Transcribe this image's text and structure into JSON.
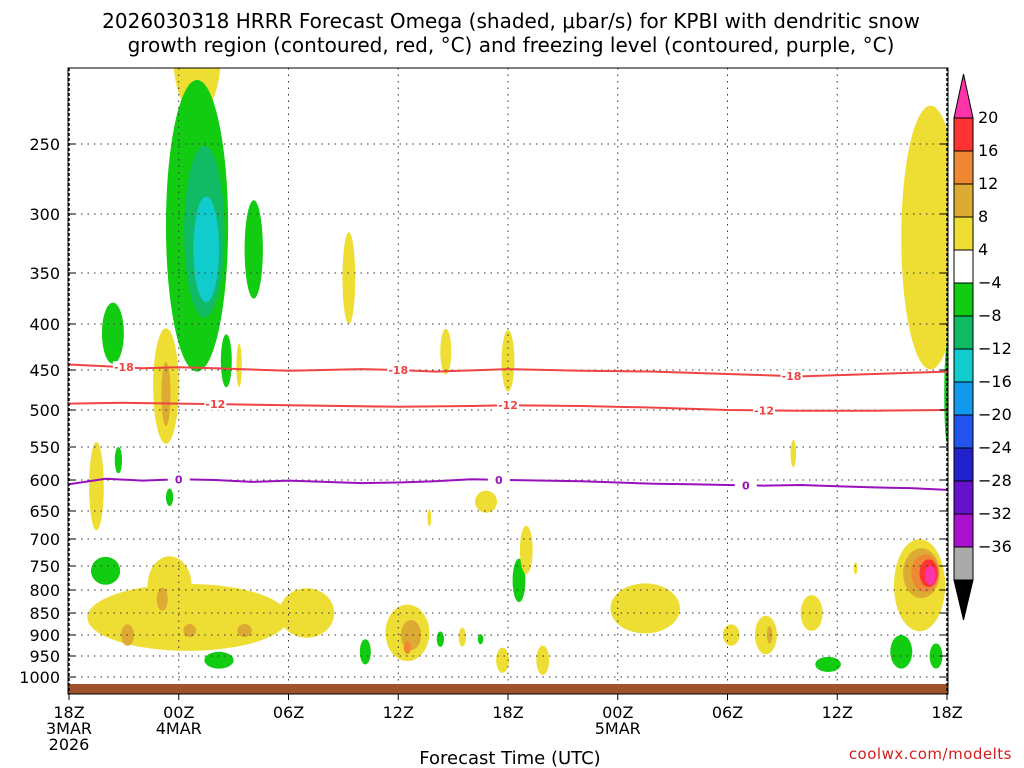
{
  "chart_data": {
    "type": "heatmap",
    "title_line1": "2026030318 HRRR Forecast Omega (shaded, μbar/s) for KPBI with dendritic snow",
    "title_line2": "growth region (contoured, red, °C) and freezing level (contoured, purple, °C)",
    "xlabel": "Forecast Time (UTC)",
    "credit": "coolwx.com/modelts",
    "xlim": [
      0,
      48
    ],
    "ylim_hPa": [
      1000,
      200
    ],
    "y_ticks": [
      {
        "v": 250,
        "label": "250"
      },
      {
        "v": 300,
        "label": "300"
      },
      {
        "v": 350,
        "label": "350"
      },
      {
        "v": 400,
        "label": "400"
      },
      {
        "v": 450,
        "label": "450"
      },
      {
        "v": 500,
        "label": "500"
      },
      {
        "v": 550,
        "label": "550"
      },
      {
        "v": 600,
        "label": "600"
      },
      {
        "v": 650,
        "label": "650"
      },
      {
        "v": 700,
        "label": "700"
      },
      {
        "v": 750,
        "label": "750"
      },
      {
        "v": 800,
        "label": "800"
      },
      {
        "v": 850,
        "label": "850"
      },
      {
        "v": 900,
        "label": "900"
      },
      {
        "v": 950,
        "label": "950"
      },
      {
        "v": 1000,
        "label": "1000"
      }
    ],
    "x_ticks": [
      {
        "hour": 0,
        "lines": [
          "18Z",
          "3MAR",
          "2026"
        ]
      },
      {
        "hour": 6,
        "lines": [
          "00Z",
          "4MAR"
        ]
      },
      {
        "hour": 12,
        "lines": [
          "06Z"
        ]
      },
      {
        "hour": 18,
        "lines": [
          "12Z"
        ]
      },
      {
        "hour": 24,
        "lines": [
          "18Z"
        ]
      },
      {
        "hour": 30,
        "lines": [
          "00Z",
          "5MAR"
        ]
      },
      {
        "hour": 36,
        "lines": [
          "06Z"
        ]
      },
      {
        "hour": 42,
        "lines": [
          "12Z"
        ]
      },
      {
        "hour": 48,
        "lines": [
          "18Z"
        ]
      }
    ],
    "colorbar": {
      "colors": [
        "#ff33aa",
        "#ff3333",
        "#ee8833",
        "#ddaa33",
        "#eedd33",
        "#ffffff",
        "#11cc11",
        "#11bb66",
        "#11cccc",
        "#1199ee",
        "#2255ee",
        "#2222cc",
        "#6611cc",
        "#aa11cc",
        "#aaaaaa",
        "#000000"
      ],
      "labels": [
        "20",
        "16",
        "12",
        "8",
        "4",
        "−4",
        "−8",
        "−12",
        "−16",
        "−20",
        "−24",
        "−28",
        "−32",
        "−36"
      ]
    },
    "palette": {
      "c4": "#eedd33",
      "c8": "#ddaa33",
      "c12": "#ee8833",
      "c16": "#ff3333",
      "c20": "#ff33aa",
      "m8": "#11cc11",
      "m12": "#11bb66",
      "m16": "#11cccc",
      "line_red": "#ee4444",
      "line_purple": "#9911bb",
      "ground": "#a0522d"
    },
    "contours": [
      {
        "name": "dgz-minus18-contour",
        "color": "#ee4444",
        "label": "-18",
        "points": [
          [
            0,
            444
          ],
          [
            2,
            446
          ],
          [
            4,
            448
          ],
          [
            6,
            447
          ],
          [
            8,
            448
          ],
          [
            12,
            451
          ],
          [
            16,
            449
          ],
          [
            18,
            450
          ],
          [
            20,
            452
          ],
          [
            24,
            449
          ],
          [
            28,
            451
          ],
          [
            32,
            452
          ],
          [
            36,
            455
          ],
          [
            40,
            458
          ],
          [
            44,
            455
          ],
          [
            48,
            452
          ]
        ],
        "label_hours": [
          3.0,
          18.0,
          39.5
        ]
      },
      {
        "name": "dgz-minus12-contour",
        "color": "#ee4444",
        "label": "-12",
        "points": [
          [
            0,
            492
          ],
          [
            3,
            491
          ],
          [
            6,
            492
          ],
          [
            9,
            493
          ],
          [
            12,
            494
          ],
          [
            18,
            496
          ],
          [
            22,
            495
          ],
          [
            24,
            494
          ],
          [
            28,
            495
          ],
          [
            32,
            497
          ],
          [
            36,
            500
          ],
          [
            40,
            501
          ],
          [
            44,
            501
          ],
          [
            48,
            500
          ]
        ],
        "label_hours": [
          8.0,
          24.0,
          38.0
        ]
      },
      {
        "name": "freezing-level-contour",
        "color": "#9911bb",
        "label": "0",
        "points": [
          [
            0,
            607
          ],
          [
            2,
            598
          ],
          [
            4,
            601
          ],
          [
            6,
            599
          ],
          [
            8,
            600
          ],
          [
            10,
            603
          ],
          [
            12,
            601
          ],
          [
            14,
            603
          ],
          [
            16,
            605
          ],
          [
            18,
            604
          ],
          [
            20,
            602
          ],
          [
            22,
            599
          ],
          [
            24,
            600
          ],
          [
            26,
            601
          ],
          [
            28,
            602
          ],
          [
            30,
            604
          ],
          [
            32,
            606
          ],
          [
            34,
            607
          ],
          [
            36,
            608
          ],
          [
            38,
            609
          ],
          [
            40,
            608
          ],
          [
            42,
            610
          ],
          [
            44,
            612
          ],
          [
            46,
            613
          ],
          [
            48,
            616
          ]
        ],
        "label_hours": [
          6.0,
          23.5,
          37.0
        ]
      }
    ],
    "shaded_regions": [
      {
        "name": "omega-region",
        "color_key": "c4",
        "hour": 7.0,
        "p": 187,
        "rh": 1.3,
        "rp": 42
      },
      {
        "name": "omega-region",
        "color_key": "m8",
        "hour": 7.0,
        "p": 310,
        "rh": 1.7,
        "rp": 120
      },
      {
        "name": "omega-region",
        "color_key": "m12",
        "hour": 7.4,
        "p": 315,
        "rh": 1.1,
        "rp": 70
      },
      {
        "name": "omega-region",
        "color_key": "m16",
        "hour": 7.5,
        "p": 330,
        "rh": 0.7,
        "rp": 45
      },
      {
        "name": "omega-region",
        "color_key": "m8",
        "hour": 10.1,
        "p": 330,
        "rh": 0.5,
        "rp": 42
      },
      {
        "name": "omega-region",
        "color_key": "c4",
        "hour": 15.3,
        "p": 355,
        "rh": 0.35,
        "rp": 42
      },
      {
        "name": "omega-region",
        "color_key": "m8",
        "hour": 2.4,
        "p": 410,
        "rh": 0.6,
        "rp": 32
      },
      {
        "name": "omega-region",
        "color_key": "m8",
        "hour": 8.6,
        "p": 440,
        "rh": 0.3,
        "rp": 30
      },
      {
        "name": "omega-region",
        "color_key": "c4",
        "hour": 9.3,
        "p": 445,
        "rh": 0.15,
        "rp": 25
      },
      {
        "name": "omega-region",
        "color_key": "c4",
        "hour": 5.3,
        "p": 470,
        "rh": 0.7,
        "rp": 70
      },
      {
        "name": "omega-region",
        "color_key": "c8",
        "hour": 5.3,
        "p": 480,
        "rh": 0.25,
        "rp": 40
      },
      {
        "name": "omega-region",
        "color_key": "c4",
        "hour": 20.6,
        "p": 430,
        "rh": 0.3,
        "rp": 25
      },
      {
        "name": "omega-region",
        "color_key": "c4",
        "hour": 24.0,
        "p": 440,
        "rh": 0.35,
        "rp": 35
      },
      {
        "name": "omega-region",
        "color_key": "c4",
        "hour": 47.1,
        "p": 320,
        "rh": 1.6,
        "rp": 110
      },
      {
        "name": "omega-region",
        "color_key": "m8",
        "hour": 48.0,
        "p": 480,
        "rh": 0.15,
        "rp": 60
      },
      {
        "name": "omega-region",
        "color_key": "c4",
        "hour": 1.5,
        "p": 610,
        "rh": 0.4,
        "rp": 70
      },
      {
        "name": "omega-region",
        "color_key": "m8",
        "hour": 2.7,
        "p": 570,
        "rh": 0.2,
        "rp": 20
      },
      {
        "name": "omega-region",
        "color_key": "m8",
        "hour": 5.5,
        "p": 628,
        "rh": 0.2,
        "rp": 14
      },
      {
        "name": "omega-region",
        "color_key": "c4",
        "hour": 22.8,
        "p": 635,
        "rh": 0.6,
        "rp": 18
      },
      {
        "name": "omega-region",
        "color_key": "c4",
        "hour": 19.7,
        "p": 662,
        "rh": 0.1,
        "rp": 15
      },
      {
        "name": "omega-region",
        "color_key": "c4",
        "hour": 39.6,
        "p": 560,
        "rh": 0.15,
        "rp": 20
      },
      {
        "name": "omega-region",
        "color_key": "m8",
        "hour": 2.0,
        "p": 760,
        "rh": 0.8,
        "rp": 28
      },
      {
        "name": "omega-region",
        "color_key": "c4",
        "hour": 6.5,
        "p": 860,
        "rh": 5.5,
        "rp": 75
      },
      {
        "name": "omega-region",
        "color_key": "c4",
        "hour": 5.5,
        "p": 790,
        "rh": 1.2,
        "rp": 60
      },
      {
        "name": "omega-region",
        "color_key": "c8",
        "hour": 3.2,
        "p": 900,
        "rh": 0.35,
        "rp": 25
      },
      {
        "name": "omega-region",
        "color_key": "c8",
        "hour": 5.1,
        "p": 820,
        "rh": 0.3,
        "rp": 25
      },
      {
        "name": "omega-region",
        "color_key": "c8",
        "hour": 6.6,
        "p": 890,
        "rh": 0.35,
        "rp": 15
      },
      {
        "name": "omega-region",
        "color_key": "c8",
        "hour": 9.6,
        "p": 890,
        "rh": 0.4,
        "rp": 15
      },
      {
        "name": "omega-region",
        "color_key": "m8",
        "hour": 8.2,
        "p": 960,
        "rh": 0.8,
        "rp": 20
      },
      {
        "name": "omega-region",
        "color_key": "c4",
        "hour": 18.5,
        "p": 895,
        "rh": 1.2,
        "rp": 65
      },
      {
        "name": "omega-region",
        "color_key": "c8",
        "hour": 18.7,
        "p": 900,
        "rh": 0.55,
        "rp": 35
      },
      {
        "name": "omega-region",
        "color_key": "c12",
        "hour": 18.5,
        "p": 930,
        "rh": 0.2,
        "rp": 15
      },
      {
        "name": "omega-region",
        "color_key": "m8",
        "hour": 16.2,
        "p": 940,
        "rh": 0.3,
        "rp": 30
      },
      {
        "name": "omega-region",
        "color_key": "c4",
        "hour": 13.0,
        "p": 850,
        "rh": 1.5,
        "rp": 55
      },
      {
        "name": "omega-region",
        "color_key": "m8",
        "hour": 20.3,
        "p": 910,
        "rh": 0.2,
        "rp": 18
      },
      {
        "name": "omega-region",
        "color_key": "c4",
        "hour": 21.5,
        "p": 905,
        "rh": 0.2,
        "rp": 22
      },
      {
        "name": "omega-region",
        "color_key": "m8",
        "hour": 22.5,
        "p": 910,
        "rh": 0.15,
        "rp": 12
      },
      {
        "name": "omega-region",
        "color_key": "c4",
        "hour": 23.7,
        "p": 960,
        "rh": 0.35,
        "rp": 30
      },
      {
        "name": "omega-region",
        "color_key": "m8",
        "hour": 24.6,
        "p": 780,
        "rh": 0.35,
        "rp": 45
      },
      {
        "name": "omega-region",
        "color_key": "c4",
        "hour": 25.0,
        "p": 720,
        "rh": 0.35,
        "rp": 45
      },
      {
        "name": "omega-region",
        "color_key": "c4",
        "hour": 25.9,
        "p": 960,
        "rh": 0.35,
        "rp": 35
      },
      {
        "name": "omega-region",
        "color_key": "c4",
        "hour": 31.5,
        "p": 840,
        "rh": 1.9,
        "rp": 55
      },
      {
        "name": "omega-region",
        "color_key": "c4",
        "hour": 36.2,
        "p": 900,
        "rh": 0.45,
        "rp": 25
      },
      {
        "name": "omega-region",
        "color_key": "c4",
        "hour": 38.1,
        "p": 900,
        "rh": 0.6,
        "rp": 45
      },
      {
        "name": "omega-region",
        "color_key": "c8",
        "hour": 38.3,
        "p": 900,
        "rh": 0.15,
        "rp": 20
      },
      {
        "name": "omega-region",
        "color_key": "c4",
        "hour": 40.6,
        "p": 850,
        "rh": 0.6,
        "rp": 40
      },
      {
        "name": "omega-region",
        "color_key": "m8",
        "hour": 41.5,
        "p": 970,
        "rh": 0.7,
        "rp": 18
      },
      {
        "name": "omega-region",
        "color_key": "m8",
        "hour": 45.5,
        "p": 940,
        "rh": 0.6,
        "rp": 40
      },
      {
        "name": "omega-region",
        "color_key": "m8",
        "hour": 47.4,
        "p": 950,
        "rh": 0.35,
        "rp": 30
      },
      {
        "name": "omega-region",
        "color_key": "c4",
        "hour": 46.5,
        "p": 790,
        "rh": 1.4,
        "rp": 95
      },
      {
        "name": "omega-region",
        "color_key": "c8",
        "hour": 46.6,
        "p": 765,
        "rh": 1.0,
        "rp": 50
      },
      {
        "name": "omega-region",
        "color_key": "c12",
        "hour": 46.8,
        "p": 765,
        "rh": 0.75,
        "rp": 38
      },
      {
        "name": "omega-region",
        "color_key": "c16",
        "hour": 47.0,
        "p": 765,
        "rh": 0.5,
        "rp": 28
      },
      {
        "name": "omega-region",
        "color_key": "c20",
        "hour": 47.1,
        "p": 770,
        "rh": 0.3,
        "rp": 20
      },
      {
        "name": "omega-region",
        "color_key": "c4",
        "hour": 43.0,
        "p": 755,
        "rh": 0.1,
        "rp": 12
      }
    ]
  }
}
